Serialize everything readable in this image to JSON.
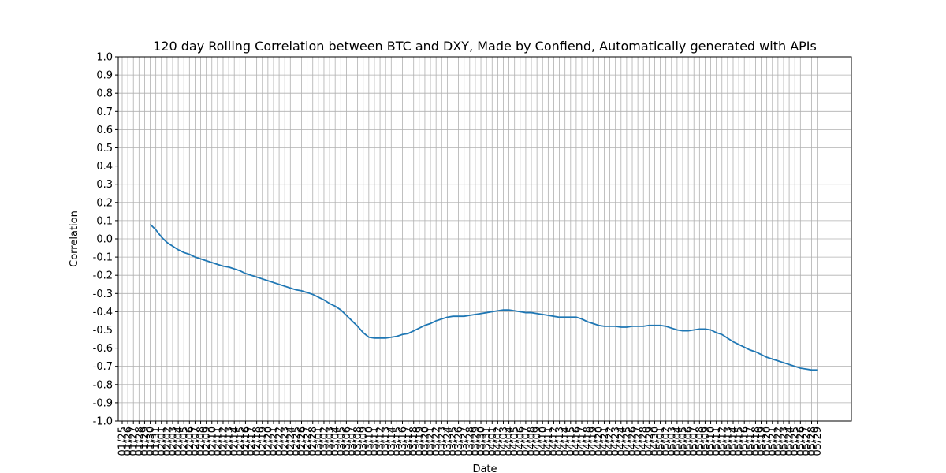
{
  "chart_data": {
    "type": "line",
    "title": "120 day Rolling Correlation between BTC and DXY, Made by Confiend, Automatically generated with APIs",
    "xlabel": "Date",
    "ylabel": "Correlation",
    "categories": [
      "01/25",
      "01/26",
      "01/27",
      "01/28",
      "01/29",
      "01/30",
      "01/31",
      "02/01",
      "02/02",
      "02/03",
      "02/04",
      "02/05",
      "02/06",
      "02/07",
      "02/08",
      "02/09",
      "02/10",
      "02/11",
      "02/12",
      "02/13",
      "02/14",
      "02/15",
      "02/16",
      "02/17",
      "02/18",
      "02/19",
      "02/20",
      "02/21",
      "02/22",
      "02/23",
      "02/24",
      "02/25",
      "02/26",
      "02/27",
      "02/28",
      "03/01",
      "03/02",
      "03/03",
      "03/04",
      "03/05",
      "03/06",
      "03/07",
      "03/08",
      "03/09",
      "03/10",
      "03/11",
      "03/12",
      "03/13",
      "03/14",
      "03/15",
      "03/16",
      "03/17",
      "03/18",
      "03/19",
      "03/20",
      "03/21",
      "03/22",
      "03/23",
      "03/24",
      "03/25",
      "03/26",
      "03/27",
      "03/28",
      "03/29",
      "03/30",
      "03/31",
      "04/01",
      "04/02",
      "04/03",
      "04/04",
      "04/05",
      "04/06",
      "04/07",
      "04/08",
      "04/09",
      "04/10",
      "04/11",
      "04/12",
      "04/13",
      "04/14",
      "04/15",
      "04/16",
      "04/17",
      "04/18",
      "04/19",
      "04/20",
      "04/21",
      "04/22",
      "04/23",
      "04/24",
      "04/25",
      "04/26",
      "04/27",
      "04/28",
      "04/29",
      "04/30",
      "05/01",
      "05/02",
      "05/03",
      "05/04",
      "05/05",
      "05/06",
      "05/07",
      "05/08",
      "05/09",
      "05/10",
      "05/11",
      "05/12",
      "05/13",
      "05/14",
      "05/15",
      "05/16",
      "05/17",
      "05/18",
      "05/19",
      "05/20",
      "05/21",
      "05/22",
      "05/23",
      "05/24",
      "05/25",
      "05/26",
      "05/27",
      "05/28",
      "05/29"
    ],
    "series": [
      {
        "name": "Correlation",
        "color": "#1f77b4",
        "values": [
          null,
          null,
          null,
          null,
          null,
          0.08,
          0.05,
          0.01,
          -0.02,
          -0.04,
          -0.06,
          -0.075,
          -0.085,
          -0.1,
          -0.11,
          -0.12,
          -0.13,
          -0.14,
          -0.15,
          -0.155,
          -0.165,
          -0.175,
          -0.19,
          -0.2,
          -0.21,
          -0.22,
          -0.23,
          -0.24,
          -0.25,
          -0.26,
          -0.27,
          -0.28,
          -0.285,
          -0.295,
          -0.305,
          -0.32,
          -0.335,
          -0.355,
          -0.37,
          -0.39,
          -0.42,
          -0.45,
          -0.48,
          -0.515,
          -0.54,
          -0.545,
          -0.545,
          -0.545,
          -0.54,
          -0.535,
          -0.525,
          -0.52,
          -0.505,
          -0.49,
          -0.475,
          -0.465,
          -0.45,
          -0.44,
          -0.43,
          -0.425,
          -0.425,
          -0.425,
          -0.42,
          -0.415,
          -0.41,
          -0.405,
          -0.4,
          -0.395,
          -0.39,
          -0.39,
          -0.395,
          -0.4,
          -0.405,
          -0.405,
          -0.41,
          -0.415,
          -0.42,
          -0.425,
          -0.43,
          -0.43,
          -0.43,
          -0.43,
          -0.44,
          -0.455,
          -0.465,
          -0.475,
          -0.48,
          -0.48,
          -0.48,
          -0.485,
          -0.485,
          -0.48,
          -0.48,
          -0.48,
          -0.475,
          -0.475,
          -0.475,
          -0.48,
          -0.49,
          -0.5,
          -0.505,
          -0.505,
          -0.5,
          -0.495,
          -0.495,
          -0.5,
          -0.515,
          -0.525,
          -0.545,
          -0.565,
          -0.58,
          -0.595,
          -0.61,
          -0.62,
          -0.635,
          -0.65,
          -0.66,
          -0.67,
          -0.68,
          -0.69,
          -0.7,
          -0.71,
          -0.715,
          -0.72,
          -0.72
        ]
      }
    ],
    "ylim": [
      -1.0,
      1.0
    ],
    "yticks": [
      {
        "value": -1.0,
        "label": "-1.0"
      },
      -0.9,
      -0.8,
      -0.7,
      -0.6,
      -0.5,
      -0.4,
      -0.3,
      -0.2,
      -0.1,
      {
        "value": 0.0,
        "label": "0.0"
      },
      0.1,
      0.2,
      0.3,
      0.4,
      0.5,
      0.6,
      0.7,
      0.8,
      0.9,
      {
        "value": 1.0,
        "label": "1.0"
      }
    ],
    "grid": true
  }
}
